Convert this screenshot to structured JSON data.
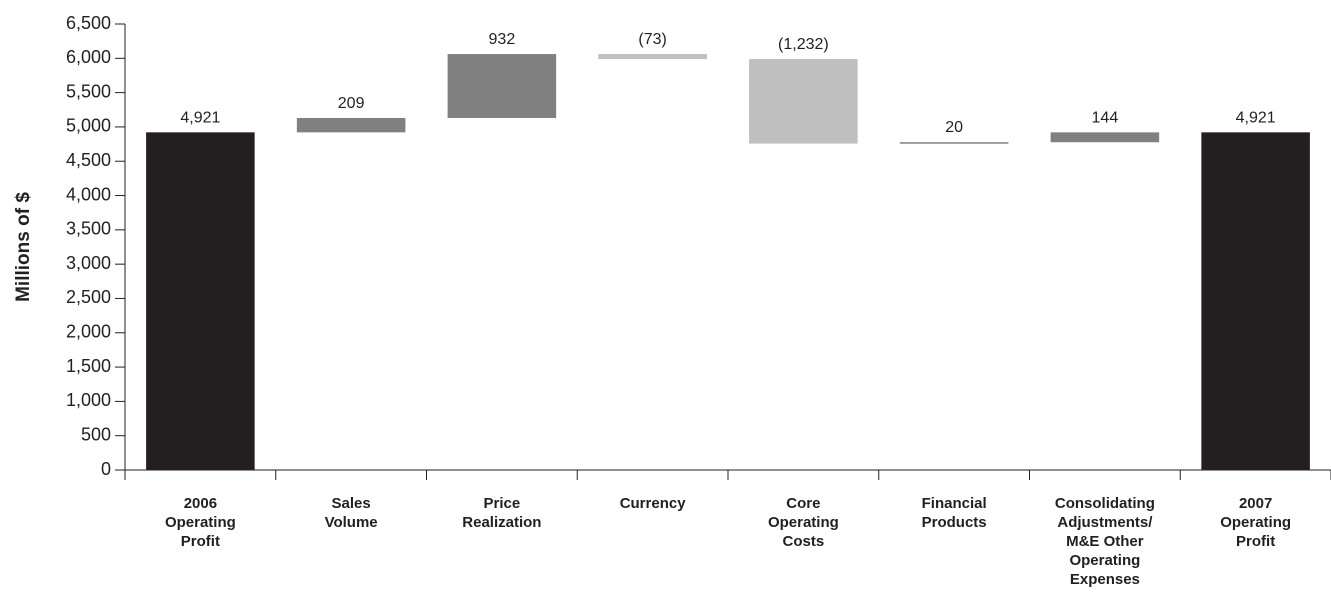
{
  "chart_data": {
    "type": "waterfall",
    "y_label": "Millions of $",
    "categories": [
      "2006\nOperating\nProfit",
      "Sales\nVolume",
      "Price\nRealization",
      "Currency",
      "Core\nOperating\nCosts",
      "Financial\nProducts",
      "Consolidating\nAdjustments/\nM&E Other\nOperating\nExpenses",
      "2007\nOperating\nProfit"
    ],
    "values": [
      4921,
      209,
      932,
      -73,
      -1232,
      20,
      144,
      4921
    ],
    "value_labels": [
      "4,921",
      "209",
      "932",
      "(73)",
      "(1,232)",
      "20",
      "144",
      "4,921"
    ],
    "bar_types": [
      "total",
      "delta",
      "delta",
      "delta",
      "delta",
      "delta",
      "delta",
      "total"
    ],
    "colors": [
      "#231f20",
      "#808080",
      "#808080",
      "#bfbfbf",
      "#bfbfbf",
      "#808080",
      "#808080",
      "#231f20"
    ],
    "ylim": [
      0,
      6500
    ],
    "yticks": [
      0,
      500,
      {
        "value": 1000,
        "label": "1,000"
      },
      {
        "value": 1500,
        "label": "1,500"
      },
      {
        "value": 2000,
        "label": "2,000"
      },
      {
        "value": 2500,
        "label": "2,500"
      },
      {
        "value": 3000,
        "label": "3,000"
      },
      {
        "value": 3500,
        "label": "3,500"
      },
      {
        "value": 4000,
        "label": "4,000"
      },
      {
        "value": 4500,
        "label": "4,500"
      },
      {
        "value": 5000,
        "label": "5,000"
      },
      {
        "value": 5500,
        "label": "5,500"
      },
      {
        "value": 6000,
        "label": "6,000"
      },
      {
        "value": 6500,
        "label": "6,500"
      }
    ]
  }
}
